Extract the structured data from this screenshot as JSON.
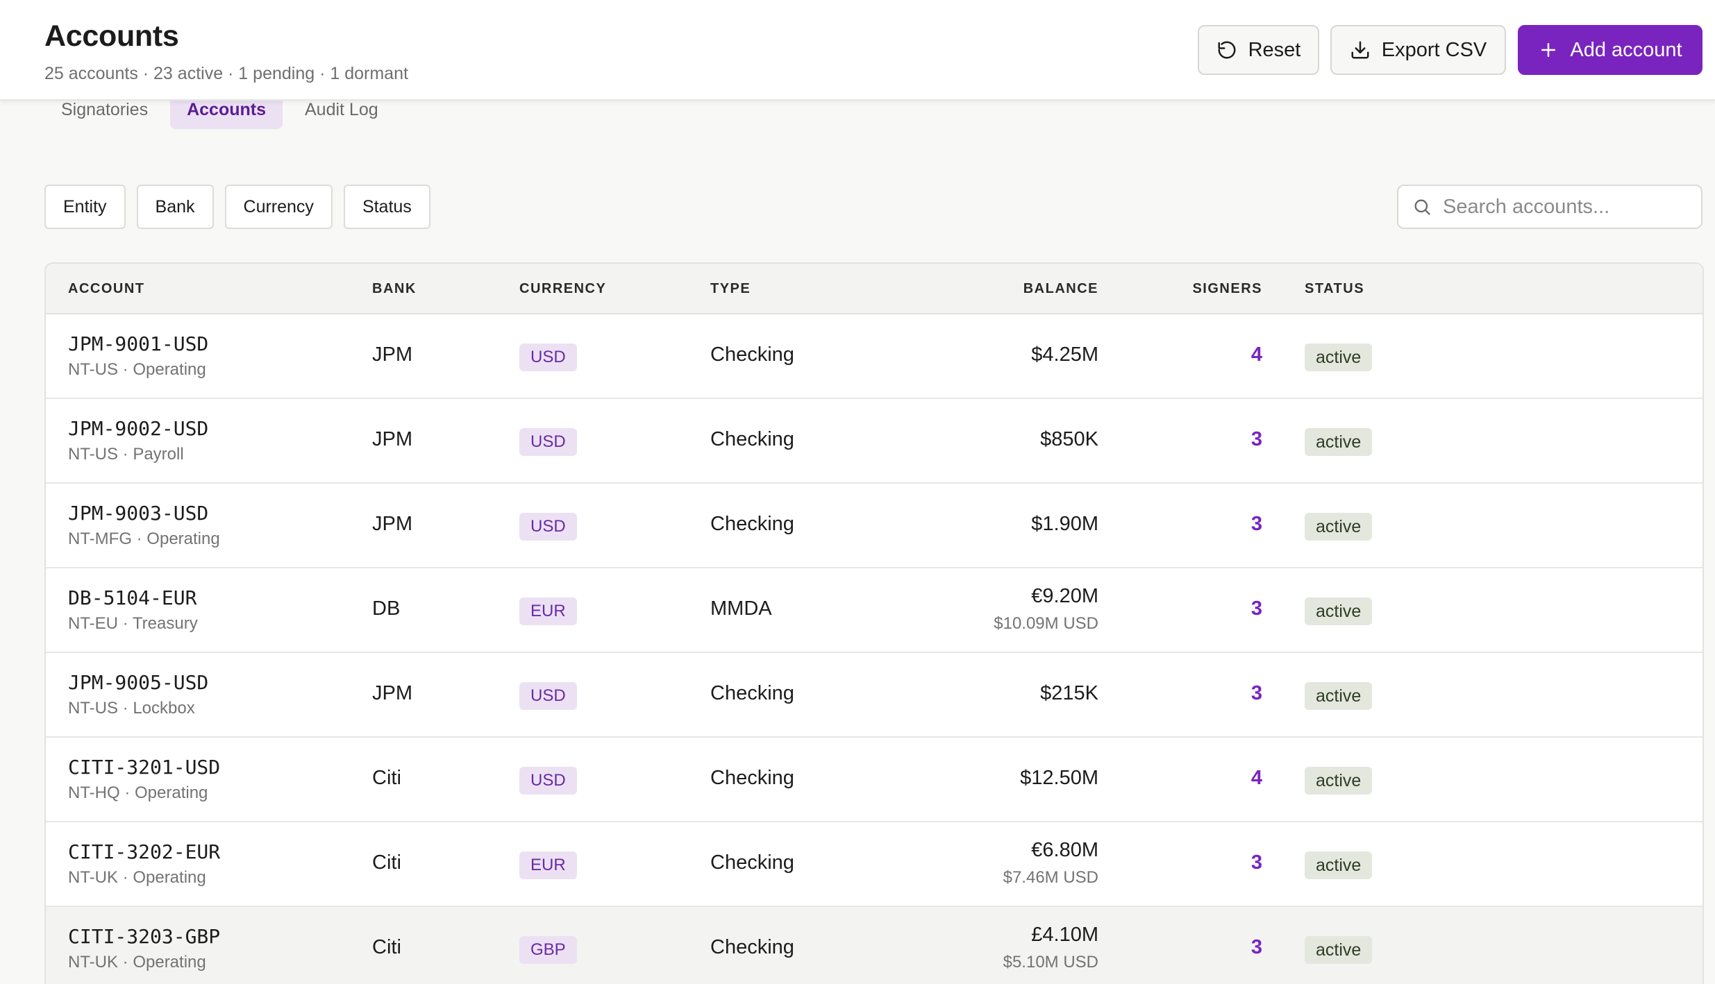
{
  "header": {
    "title": "Accounts",
    "subtitle": "25 accounts · 23 active · 1 pending · 1 dormant",
    "reset_label": "Reset",
    "export_label": "Export CSV",
    "add_label": "Add account",
    "reset_icon": "rotate-ccw-icon",
    "export_icon": "download-icon",
    "add_icon": "plus-icon"
  },
  "tabs": [
    {
      "label": "Signatories",
      "active": false
    },
    {
      "label": "Accounts",
      "active": true
    },
    {
      "label": "Audit Log",
      "active": false
    }
  ],
  "filters": [
    "Entity",
    "Bank",
    "Currency",
    "Status"
  ],
  "search": {
    "placeholder": "Search accounts...",
    "value": "",
    "icon": "search-icon"
  },
  "table": {
    "columns": [
      "ACCOUNT",
      "BANK",
      "CURRENCY",
      "TYPE",
      "BALANCE",
      "SIGNERS",
      "STATUS"
    ],
    "rows": [
      {
        "id": "JPM-9001-USD",
        "sub": "NT-US · Operating",
        "bank": "JPM",
        "currency": "USD",
        "type": "Checking",
        "balance": "$4.25M",
        "balance_usd": "",
        "signers": "4",
        "status": "active"
      },
      {
        "id": "JPM-9002-USD",
        "sub": "NT-US · Payroll",
        "bank": "JPM",
        "currency": "USD",
        "type": "Checking",
        "balance": "$850K",
        "balance_usd": "",
        "signers": "3",
        "status": "active"
      },
      {
        "id": "JPM-9003-USD",
        "sub": "NT-MFG · Operating",
        "bank": "JPM",
        "currency": "USD",
        "type": "Checking",
        "balance": "$1.90M",
        "balance_usd": "",
        "signers": "3",
        "status": "active"
      },
      {
        "id": "DB-5104-EUR",
        "sub": "NT-EU · Treasury",
        "bank": "DB",
        "currency": "EUR",
        "type": "MMDA",
        "balance": "€9.20M",
        "balance_usd": "$10.09M USD",
        "signers": "3",
        "status": "active"
      },
      {
        "id": "JPM-9005-USD",
        "sub": "NT-US · Lockbox",
        "bank": "JPM",
        "currency": "USD",
        "type": "Checking",
        "balance": "$215K",
        "balance_usd": "",
        "signers": "3",
        "status": "active"
      },
      {
        "id": "CITI-3201-USD",
        "sub": "NT-HQ · Operating",
        "bank": "Citi",
        "currency": "USD",
        "type": "Checking",
        "balance": "$12.50M",
        "balance_usd": "",
        "signers": "4",
        "status": "active"
      },
      {
        "id": "CITI-3202-EUR",
        "sub": "NT-UK · Operating",
        "bank": "Citi",
        "currency": "EUR",
        "type": "Checking",
        "balance": "€6.80M",
        "balance_usd": "$7.46M USD",
        "signers": "3",
        "status": "active"
      },
      {
        "id": "CITI-3203-GBP",
        "sub": "NT-UK · Operating",
        "bank": "Citi",
        "currency": "GBP",
        "type": "Checking",
        "balance": "£4.10M",
        "balance_usd": "$5.10M USD",
        "signers": "3",
        "status": "active"
      }
    ]
  },
  "colors": {
    "accent": "#7a24c0",
    "tab_active_bg": "#ece1f3",
    "status_bg": "#e3e7de"
  }
}
